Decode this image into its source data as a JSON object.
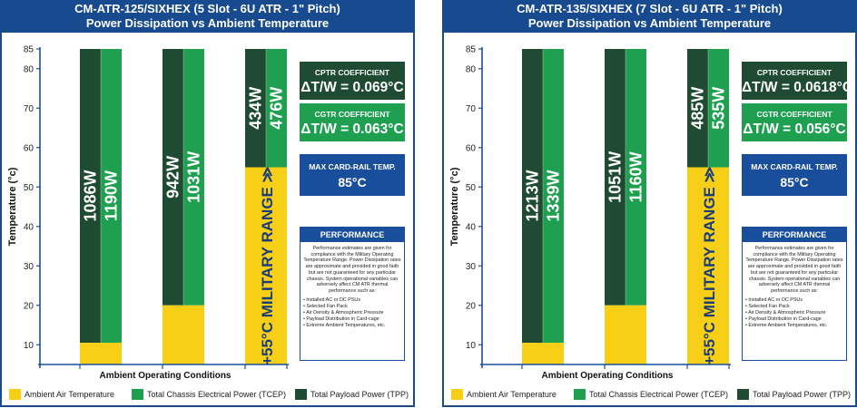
{
  "colors": {
    "ambient": "#f6cf16",
    "tcep": "#1fa050",
    "tpp": "#1e4b31",
    "header": "#174a8f",
    "axis": "#194e9c"
  },
  "legend": {
    "ambient": "Ambient Air Temperature",
    "tcep": "Total Chassis Electrical Power (TCEP)",
    "tpp": "Total Payload Power (TPP)"
  },
  "chart_data": [
    {
      "type": "bar",
      "title": "CM-ATR-125/SIXHEX (5 Slot - 6U ATR - 1\" Pitch)",
      "subtitle": "Power Dissipation vs Ambient Temperature",
      "ylabel": "Temperature (°c)",
      "xlabel": "Ambient Operating Conditions",
      "ylim": [
        5,
        85
      ],
      "yticks": [
        10,
        20,
        30,
        40,
        50,
        60,
        70,
        80,
        85
      ],
      "bars": [
        {
          "ambient": 10.5,
          "top": 85,
          "tpp_label": "1086W",
          "tcep_label": "1190W",
          "military": ""
        },
        {
          "ambient": 20,
          "top": 85,
          "tpp_label": "942W",
          "tcep_label": "1031W",
          "military": ""
        },
        {
          "ambient": 55,
          "top": 85,
          "tpp_label": "434W",
          "tcep_label": "476W",
          "military": "+55°C MILITARY RANGE ≫"
        }
      ],
      "cptr": {
        "caption": "CPTR COEFFICIENT",
        "value": "ΔT/W = 0.069°C"
      },
      "cgtr": {
        "caption": "CGTR COEFFICIENT",
        "value": "ΔT/W = 0.063°C"
      },
      "max": {
        "caption": "MAX CARD-RAIL TEMP.",
        "value": "85°C"
      },
      "performance": {
        "title": "PERFORMANCE",
        "text": "Performance estimates are given for compliance with the Military Operating Temperature Range. Power Dissipation rates are approximate and provided in good faith but are not guaranteed for any particular chassis. System operational variables can adversely affect CM ATR thermal performance such as:",
        "items": [
          "Installed AC or DC PSUs",
          "Selected Fan Pack",
          "Air Density & Atmospheric Pressure",
          "Payload Distribution in Card-cage",
          "Extreme Ambient Temperatures, etc."
        ]
      }
    },
    {
      "type": "bar",
      "title": "CM-ATR-135/SIXHEX (7 Slot - 6U ATR - 1\" Pitch)",
      "subtitle": "Power Dissipation vs Ambient Temperature",
      "ylabel": "Temperature (°c)",
      "xlabel": "Ambient Operating Conditions",
      "ylim": [
        5,
        85
      ],
      "yticks": [
        10,
        20,
        30,
        40,
        50,
        60,
        70,
        80,
        85
      ],
      "bars": [
        {
          "ambient": 10.5,
          "top": 85,
          "tpp_label": "1213W",
          "tcep_label": "1339W",
          "military": ""
        },
        {
          "ambient": 20,
          "top": 85,
          "tpp_label": "1051W",
          "tcep_label": "1160W",
          "military": ""
        },
        {
          "ambient": 55,
          "top": 85,
          "tpp_label": "485W",
          "tcep_label": "535W",
          "military": "+55°C MILITARY RANGE ≫"
        }
      ],
      "cptr": {
        "caption": "CPTR COEFFICIENT",
        "value": "ΔT/W = 0.0618°C"
      },
      "cgtr": {
        "caption": "CGTR COEFFICIENT",
        "value": "ΔT/W = 0.056°C"
      },
      "max": {
        "caption": "MAX CARD-RAIL TEMP.",
        "value": "85°C"
      },
      "performance": {
        "title": "PERFORMANCE",
        "text": "Performance estimates are given for compliance with the Military Operating Temperature Range. Power Dissipation rates are approximate and provided in good faith but are not guaranteed for any particular chassis. System operational variables can adversely affect CM ATR thermal performance such as:",
        "items": [
          "Installed AC or DC PSUs",
          "Selected Fan Pack",
          "Air Density & Atmospheric Pressure",
          "Payload Distribution in Card-cage",
          "Extreme Ambient Temperatures, etc."
        ]
      }
    }
  ]
}
